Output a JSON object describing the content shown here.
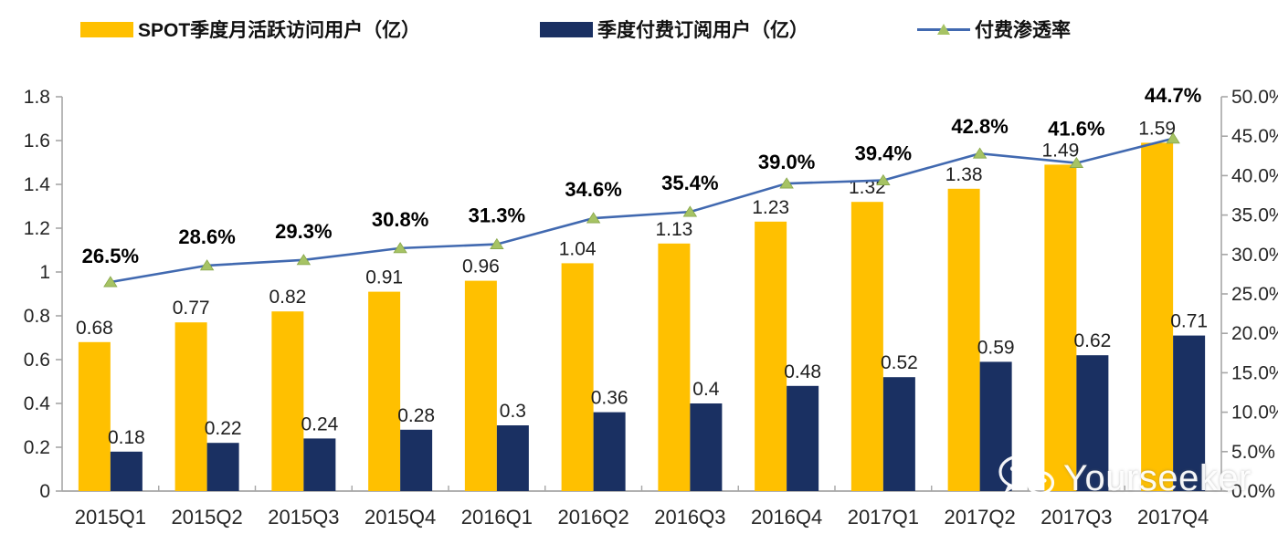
{
  "legend": {
    "items": [
      {
        "label": "SPOT季度月活跃访问用户（亿）",
        "swatch": "bar",
        "color": "#FFC000"
      },
      {
        "label": "季度付费订阅用户（亿）",
        "swatch": "bar",
        "color": "#1A3062"
      },
      {
        "label": "付费渗透率",
        "swatch": "line-marker",
        "color": "#4169B0",
        "marker_color": "#A6C364"
      }
    ]
  },
  "watermark": {
    "text": "Yourseeker",
    "icon": "wechat-icon"
  },
  "chart_data": {
    "type": "bar",
    "subtype": "combo-bar-line",
    "title": "",
    "grid": false,
    "legend_position": "top",
    "categories": [
      "2015Q1",
      "2015Q2",
      "2015Q3",
      "2015Q4",
      "2016Q1",
      "2016Q2",
      "2016Q3",
      "2016Q4",
      "2017Q1",
      "2017Q2",
      "2017Q3",
      "2017Q4"
    ],
    "series": [
      {
        "name": "SPOT季度月活跃访问用户（亿）",
        "type": "bar",
        "axis": "left",
        "color": "#FFC000",
        "values": [
          0.68,
          0.77,
          0.82,
          0.91,
          0.96,
          1.04,
          1.13,
          1.23,
          1.32,
          1.38,
          1.49,
          1.59
        ],
        "labels": [
          "0.68",
          "0.77",
          "0.82",
          "0.91",
          "0.96",
          "1.04",
          "1.13",
          "1.23",
          "1.32",
          "1.38",
          "1.49",
          "1.59"
        ]
      },
      {
        "name": "季度付费订阅用户（亿）",
        "type": "bar",
        "axis": "left",
        "color": "#1A3062",
        "values": [
          0.18,
          0.22,
          0.24,
          0.28,
          0.3,
          0.36,
          0.4,
          0.48,
          0.52,
          0.59,
          0.62,
          0.71
        ],
        "labels": [
          "0.18",
          "0.22",
          "0.24",
          "0.28",
          "0.3",
          "0.36",
          "0.4",
          "0.48",
          "0.52",
          "0.59",
          "0.62",
          "0.71"
        ]
      },
      {
        "name": "付费渗透率",
        "type": "line",
        "axis": "right",
        "color": "#4169B0",
        "marker": "triangle",
        "marker_color": "#A6C364",
        "values": [
          26.5,
          28.6,
          29.3,
          30.8,
          31.3,
          34.6,
          35.4,
          39.0,
          39.4,
          42.8,
          41.6,
          44.7
        ],
        "labels": [
          "26.5%",
          "28.6%",
          "29.3%",
          "30.8%",
          "31.3%",
          "34.6%",
          "35.4%",
          "39.0%",
          "39.4%",
          "42.8%",
          "41.6%",
          "44.7%"
        ]
      }
    ],
    "left_axis": {
      "min": 0,
      "max": 1.8,
      "step": 0.2,
      "tick_labels": [
        "0",
        "0.2",
        "0.4",
        "0.6",
        "0.8",
        "1",
        "1.2",
        "1.4",
        "1.6",
        "1.8"
      ]
    },
    "right_axis": {
      "min": 0,
      "max": 50,
      "step": 5,
      "tick_labels": [
        "0.0%",
        "5.0%",
        "10.0%",
        "15.0%",
        "20.0%",
        "25.0%",
        "30.0%",
        "35.0%",
        "40.0%",
        "45.0%",
        "50.0%"
      ]
    }
  }
}
